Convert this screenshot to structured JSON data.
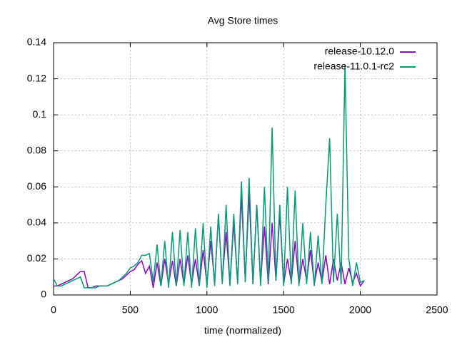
{
  "chart_data": {
    "type": "line",
    "title": "Avg Store times",
    "x_label": "time (normalized)",
    "x": [
      0,
      25,
      50,
      75,
      100,
      125,
      150,
      175,
      200,
      225,
      250,
      275,
      300,
      325,
      350,
      375,
      400,
      425,
      450,
      475,
      500,
      525,
      550,
      575,
      600,
      625,
      650,
      675,
      700,
      725,
      750,
      775,
      800,
      825,
      850,
      875,
      900,
      925,
      950,
      975,
      1000,
      1025,
      1050,
      1075,
      1100,
      1125,
      1150,
      1175,
      1200,
      1225,
      1250,
      1275,
      1300,
      1325,
      1350,
      1375,
      1400,
      1425,
      1450,
      1475,
      1500,
      1525,
      1550,
      1575,
      1600,
      1625,
      1650,
      1675,
      1700,
      1725,
      1750,
      1775,
      1800,
      1825,
      1850,
      1875,
      1900,
      1925,
      1950,
      1975,
      2000,
      2025
    ],
    "series": [
      {
        "name": "release-10.12.0",
        "color": "#9400d3",
        "values": [
          0.005,
          0.005,
          0.006,
          0.007,
          0.008,
          0.009,
          0.011,
          0.013,
          0.013,
          0.004,
          0.004,
          0.005,
          0.005,
          0.005,
          0.005,
          0.006,
          0.007,
          0.008,
          0.009,
          0.011,
          0.013,
          0.014,
          0.017,
          0.019,
          0.012,
          0.016,
          0.004,
          0.018,
          0.005,
          0.02,
          0.006,
          0.019,
          0.005,
          0.02,
          0.006,
          0.022,
          0.006,
          0.02,
          0.005,
          0.025,
          0.006,
          0.03,
          0.007,
          0.044,
          0.008,
          0.035,
          0.006,
          0.04,
          0.007,
          0.055,
          0.008,
          0.056,
          0.006,
          0.05,
          0.007,
          0.038,
          0.006,
          0.04,
          0.008,
          0.045,
          0.006,
          0.02,
          0.007,
          0.03,
          0.006,
          0.02,
          0.008,
          0.025,
          0.006,
          0.018,
          0.007,
          0.022,
          0.006,
          0.02,
          0.008,
          0.018,
          0.006,
          0.015,
          0.007,
          0.012,
          0.005,
          0.008
        ]
      },
      {
        "name": "release-11.0.1-rc2",
        "color": "#009e73",
        "values": [
          0.009,
          0.005,
          0.005,
          0.006,
          0.007,
          0.008,
          0.009,
          0.01,
          0.004,
          0.004,
          0.004,
          0.004,
          0.005,
          0.005,
          0.005,
          0.006,
          0.007,
          0.008,
          0.01,
          0.012,
          0.015,
          0.016,
          0.018,
          0.022,
          0.022,
          0.023,
          0.007,
          0.028,
          0.005,
          0.03,
          0.004,
          0.035,
          0.005,
          0.036,
          0.005,
          0.035,
          0.004,
          0.037,
          0.005,
          0.04,
          0.004,
          0.038,
          0.005,
          0.045,
          0.006,
          0.05,
          0.005,
          0.045,
          0.006,
          0.063,
          0.007,
          0.065,
          0.006,
          0.05,
          0.005,
          0.06,
          0.007,
          0.093,
          0.008,
          0.05,
          0.005,
          0.06,
          0.006,
          0.058,
          0.005,
          0.04,
          0.006,
          0.035,
          0.005,
          0.033,
          0.006,
          0.05,
          0.087,
          0.007,
          0.045,
          0.006,
          0.128,
          0.02,
          0.005,
          0.018,
          0.007,
          0.008
        ]
      }
    ],
    "xlim": [
      0,
      2500
    ],
    "xticks": [
      0,
      500,
      1000,
      1500,
      2000,
      2500
    ],
    "ylim": [
      0,
      0.14
    ],
    "yticks": [
      0,
      0.02,
      0.04,
      0.06,
      0.08,
      0.1,
      0.12,
      0.14
    ],
    "grid": true,
    "legend": "top-right"
  }
}
